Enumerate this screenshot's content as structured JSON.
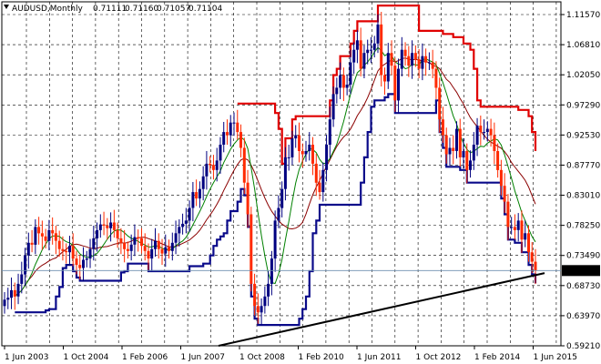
{
  "chart_data": {
    "type": "candlestick",
    "title": "AUDUSD,Monthly",
    "ohlc_readout": [
      "0.71111",
      "0.71160",
      "0.71057",
      "0.71104"
    ],
    "last_price_label": "0.71104",
    "x_tick_labels": [
      "1 Jun 2003",
      "1 Oct 2004",
      "1 Feb 2006",
      "1 Jun 2007",
      "1 Oct 2008",
      "1 Feb 2010",
      "1 Jun 2011",
      "1 Oct 2012",
      "1 Feb 2014",
      "1 Jun 2015"
    ],
    "y_tick_labels": [
      "1.11570",
      "1.06810",
      "1.02050",
      "0.97290",
      "0.92530",
      "0.87770",
      "0.83010",
      "0.78250",
      "0.73490",
      "0.68730",
      "0.63970",
      "0.59210"
    ],
    "ylim": [
      0.5921,
      1.1157
    ],
    "grid": true,
    "colors": {
      "bull": "#000080",
      "bear": "#ff2a00",
      "upper_band": "#e00000",
      "lower_band": "#0a0a8a",
      "ma_fast": "#008000",
      "ma_slow": "#8b0000",
      "trendline": "#000000",
      "last_price_line": "#6f8fb0"
    },
    "closes": [
      0.665,
      0.668,
      0.68,
      0.67,
      0.69,
      0.705,
      0.735,
      0.755,
      0.752,
      0.78,
      0.77,
      0.765,
      0.758,
      0.775,
      0.77,
      0.758,
      0.745,
      0.742,
      0.74,
      0.75,
      0.73,
      0.72,
      0.715,
      0.728,
      0.73,
      0.745,
      0.762,
      0.775,
      0.784,
      0.782,
      0.778,
      0.787,
      0.775,
      0.762,
      0.755,
      0.745,
      0.742,
      0.752,
      0.764,
      0.762,
      0.75,
      0.742,
      0.73,
      0.745,
      0.758,
      0.745,
      0.738,
      0.748,
      0.742,
      0.755,
      0.77,
      0.78,
      0.785,
      0.79,
      0.81,
      0.835,
      0.825,
      0.84,
      0.86,
      0.88,
      0.878,
      0.87,
      0.885,
      0.91,
      0.93,
      0.925,
      0.945,
      0.945,
      0.93,
      0.905,
      0.85,
      0.8,
      0.69,
      0.655,
      0.645,
      0.655,
      0.67,
      0.69,
      0.73,
      0.79,
      0.81,
      0.84,
      0.89,
      0.89,
      0.92,
      0.925,
      0.9,
      0.895,
      0.9,
      0.91,
      0.88,
      0.85,
      0.835,
      0.87,
      0.91,
      0.95,
      0.99,
      1.0,
      1.02,
      1.0,
      1.005,
      1.04,
      1.06,
      1.075,
      1.03,
      1.055,
      1.06,
      1.06,
      1.07,
      1.1,
      1.02,
      1.01,
      1.055,
      1.035,
      0.98,
      1.03,
      1.06,
      1.05,
      1.035,
      1.055,
      1.045,
      1.03,
      1.05,
      1.04,
      1.04,
      1.03,
      1.0,
      0.95,
      0.925,
      0.895,
      0.905,
      0.9,
      0.935,
      0.89,
      0.9,
      0.87,
      0.885,
      0.91,
      0.94,
      0.93,
      0.93,
      0.935,
      0.925,
      0.9,
      0.87,
      0.845,
      0.82,
      0.78,
      0.78,
      0.775,
      0.79,
      0.76,
      0.77,
      0.74,
      0.725,
      0.711
    ]
  }
}
